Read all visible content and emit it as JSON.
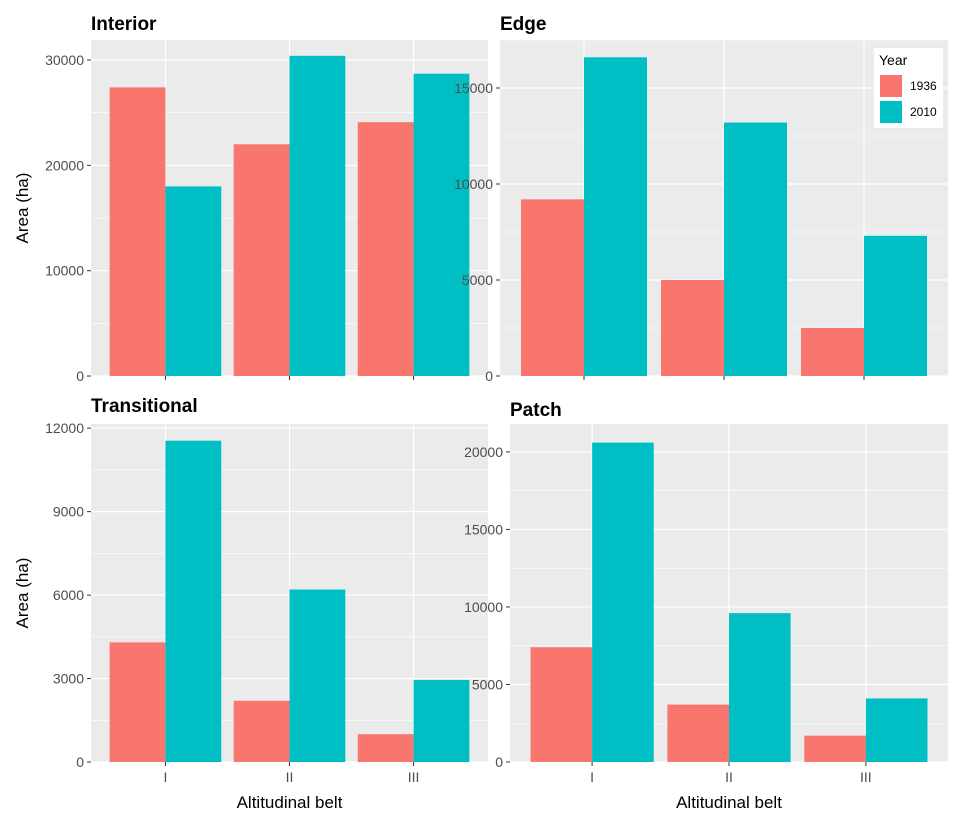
{
  "chart_data": [
    {
      "type": "bar",
      "title": "Interior",
      "xlabel": "",
      "ylabel": "Area (ha)",
      "categories": [
        "I",
        "II",
        "III"
      ],
      "series": [
        {
          "name": "1936",
          "values": [
            27400,
            22000,
            24100
          ]
        },
        {
          "name": "2010",
          "values": [
            18000,
            30400,
            28700
          ]
        }
      ],
      "ylim": [
        0,
        31900
      ],
      "yticks": [
        0,
        10000,
        20000,
        30000
      ],
      "grid": true
    },
    {
      "type": "bar",
      "title": "Edge",
      "xlabel": "",
      "ylabel": "",
      "categories": [
        "I",
        "II",
        "III"
      ],
      "series": [
        {
          "name": "1936",
          "values": [
            9200,
            5000,
            2500
          ]
        },
        {
          "name": "2010",
          "values": [
            16600,
            13200,
            7300
          ]
        }
      ],
      "ylim": [
        0,
        17500
      ],
      "yticks": [
        0,
        5000,
        10000,
        15000
      ],
      "grid": true
    },
    {
      "type": "bar",
      "title": "Transitional",
      "xlabel": "Altitudinal belt",
      "ylabel": "Area (ha)",
      "categories": [
        "I",
        "II",
        "III"
      ],
      "series": [
        {
          "name": "1936",
          "values": [
            4300,
            2200,
            1000
          ]
        },
        {
          "name": "2010",
          "values": [
            11550,
            6200,
            2950
          ]
        }
      ],
      "ylim": [
        0,
        12150
      ],
      "yticks": [
        0,
        3000,
        6000,
        9000,
        12000
      ],
      "grid": true
    },
    {
      "type": "bar",
      "title": "Patch",
      "xlabel": "Altitudinal belt",
      "ylabel": "",
      "categories": [
        "I",
        "II",
        "III"
      ],
      "series": [
        {
          "name": "1936",
          "values": [
            7400,
            3700,
            1700
          ]
        },
        {
          "name": "2010",
          "values": [
            20600,
            9600,
            4100
          ]
        }
      ],
      "ylim": [
        0,
        21800
      ],
      "yticks": [
        0,
        5000,
        10000,
        15000,
        20000
      ],
      "grid": true
    }
  ],
  "legend": {
    "title": "Year",
    "placement": "top-right",
    "entries": [
      {
        "label": "1936",
        "color": "#F8766D"
      },
      {
        "label": "2010",
        "color": "#00BFC4"
      }
    ]
  },
  "colors": {
    "panel_background": "#EBEBEB",
    "grid_major": "#FFFFFF",
    "series_1936": "#F8766D",
    "series_2010": "#00BFC4",
    "tick_text": "#4D4D4D"
  }
}
